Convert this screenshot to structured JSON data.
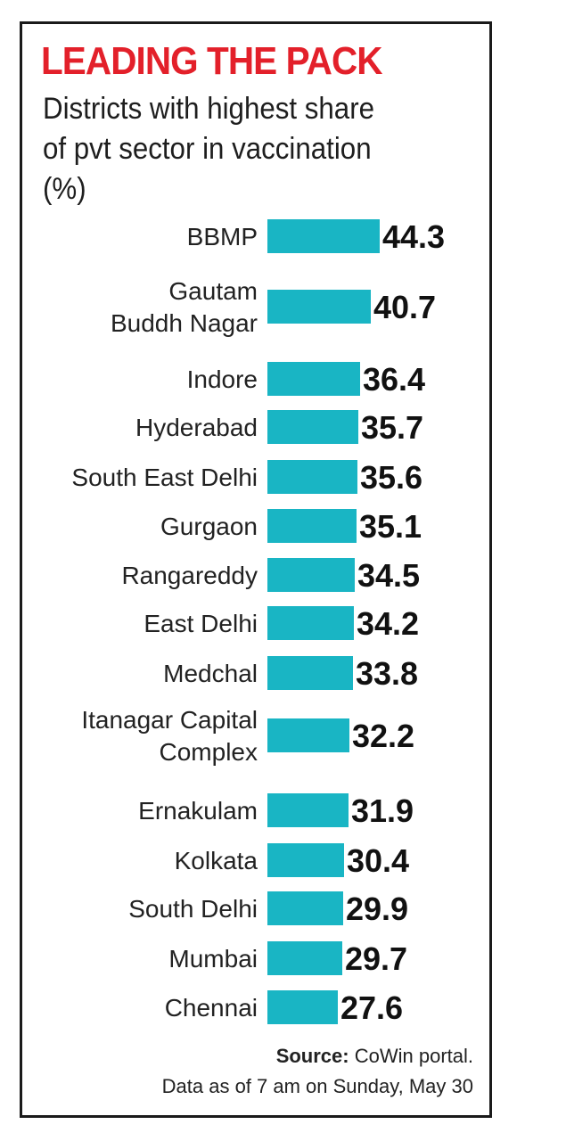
{
  "title": "LEADING THE PACK",
  "subtitle": "Districts with highest share of pvt sector in vaccination (%)",
  "source_label": "Source:",
  "source_text": " CoWin portal.",
  "note": "Data as of 7 am on Sunday, May 30",
  "colors": {
    "bar": "#19b5c4",
    "title": "#e3202a",
    "frame": "#1a1a1a"
  },
  "chart_data": {
    "type": "bar",
    "orientation": "horizontal",
    "categories": [
      [
        "BBMP"
      ],
      [
        "Gautam",
        "Buddh Nagar"
      ],
      [
        "Indore"
      ],
      [
        "Hyderabad"
      ],
      [
        "South East Delhi"
      ],
      [
        "Gurgaon"
      ],
      [
        "Rangareddy"
      ],
      [
        "East Delhi"
      ],
      [
        "Medchal"
      ],
      [
        "Itanagar Capital",
        "Complex"
      ],
      [
        "Ernakulam"
      ],
      [
        "Kolkata"
      ],
      [
        "South Delhi"
      ],
      [
        "Mumbai"
      ],
      [
        "Chennai"
      ]
    ],
    "values": [
      44.3,
      40.7,
      36.4,
      35.7,
      35.6,
      35.1,
      34.5,
      34.2,
      33.8,
      32.2,
      31.9,
      30.4,
      29.9,
      29.7,
      27.6
    ],
    "value_labels": [
      "44.3",
      "40.7",
      "36.4",
      "35.7",
      "35.6",
      "35.1",
      "34.5",
      "34.2",
      "33.8",
      "32.2",
      "31.9",
      "30.4",
      "29.9",
      "29.7",
      "27.6"
    ],
    "title": "LEADING THE PACK",
    "subtitle": "Districts with highest share of pvt sector in vaccination (%)",
    "xlabel": "",
    "ylabel": "",
    "xlim": [
      0,
      44.3
    ],
    "grid": false,
    "legend": "none"
  }
}
